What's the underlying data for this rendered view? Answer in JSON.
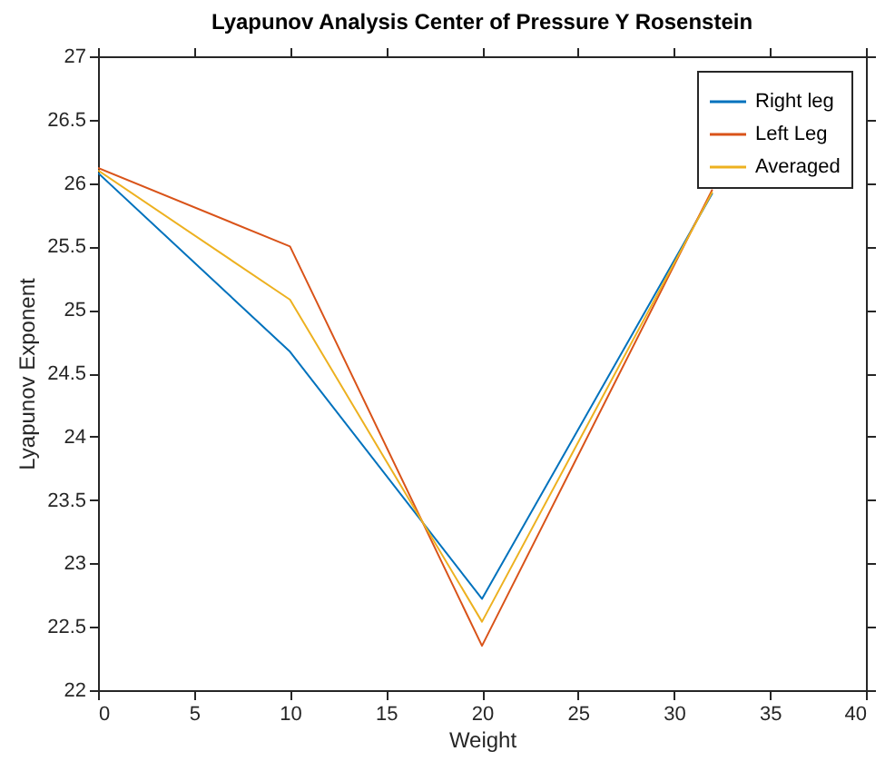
{
  "chart_data": {
    "type": "line",
    "title": "Lyapunov Analysis Center of Pressure Y Rosenstein",
    "xlabel": "Weight",
    "ylabel": "Lyapunov Exponent",
    "x": [
      0,
      10,
      20,
      32
    ],
    "series": [
      {
        "name": "Right leg",
        "color": "#0072bd",
        "values": [
          26.08,
          24.67,
          22.72,
          25.92
        ]
      },
      {
        "name": "Left Leg",
        "color": "#d95319",
        "values": [
          26.12,
          25.5,
          22.35,
          25.95
        ]
      },
      {
        "name": "Averaged",
        "color": "#edb120",
        "values": [
          26.1,
          25.08,
          22.54,
          25.93
        ]
      }
    ],
    "xlim": [
      0,
      40
    ],
    "xticks": [
      0,
      5,
      10,
      15,
      20,
      25,
      30,
      35,
      40
    ],
    "ylim": [
      22,
      27
    ],
    "yticks": [
      22,
      22.5,
      23,
      23.5,
      24,
      24.5,
      25,
      25.5,
      26,
      26.5,
      27
    ],
    "grid": false,
    "legend": "top right",
    "marker": "none",
    "line_style": "solid"
  }
}
